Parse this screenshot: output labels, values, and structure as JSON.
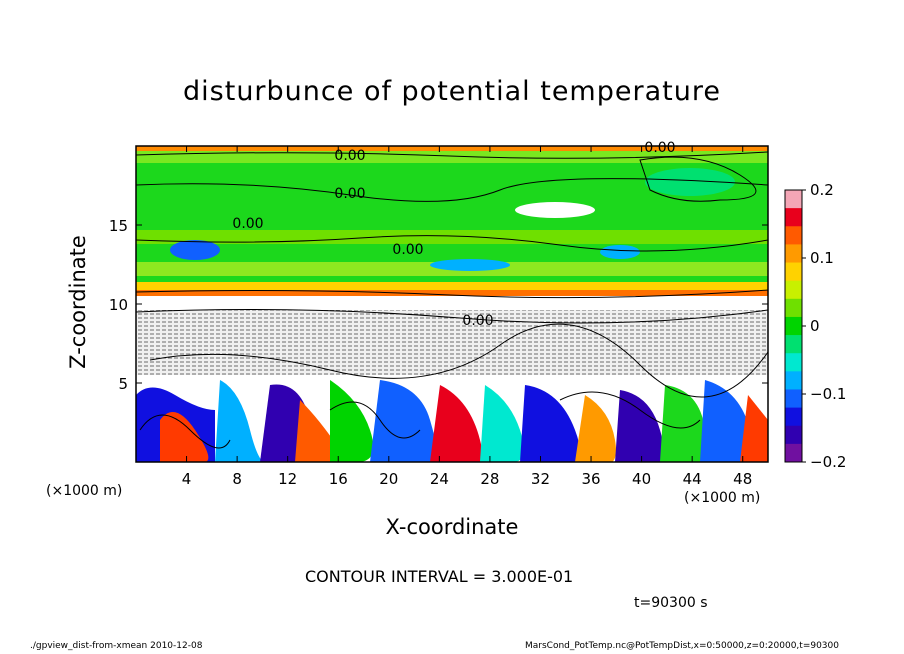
{
  "chart_data": {
    "type": "heatmap",
    "title": "disturbunce of potential temperature",
    "xlabel": "X-coordinate",
    "ylabel": "Z-coordinate",
    "x_unit": "(×1000 m)",
    "y_unit": "(×1000 m)",
    "xlim": [
      0,
      50
    ],
    "ylim": [
      0,
      20
    ],
    "x_ticks": [
      "4",
      "8",
      "12",
      "16",
      "20",
      "24",
      "28",
      "32",
      "36",
      "40",
      "44",
      "48"
    ],
    "y_ticks": [
      "5",
      "10",
      "15"
    ],
    "colorbar": {
      "range": [
        -0.2,
        0.2
      ],
      "tick_labels": [
        "0.2",
        "0.1",
        "0",
        "−0.1",
        "−0.2"
      ],
      "colors": [
        "#f4a6b6",
        "#e8001c",
        "#ff5a00",
        "#ff9a00",
        "#ffd200",
        "#c8f000",
        "#6fe000",
        "#00d400",
        "#00e070",
        "#00e8d0",
        "#00b0ff",
        "#1060ff",
        "#1010e0",
        "#3000b0",
        "#7010a0"
      ]
    },
    "contour_labels": [
      "0.00",
      "0.00",
      "0.00",
      "0.00",
      "0.00",
      "0.00"
    ],
    "contour_interval": "CONTOUR INTERVAL = 3.000E-01",
    "time": "t=90300 s"
  },
  "footer": {
    "left": "./gpview_dist-from-xmean   2010-12-08",
    "right": "MarsCond_PotTemp.nc@PotTempDist,x=0:50000,z=0:20000,t=90300"
  }
}
